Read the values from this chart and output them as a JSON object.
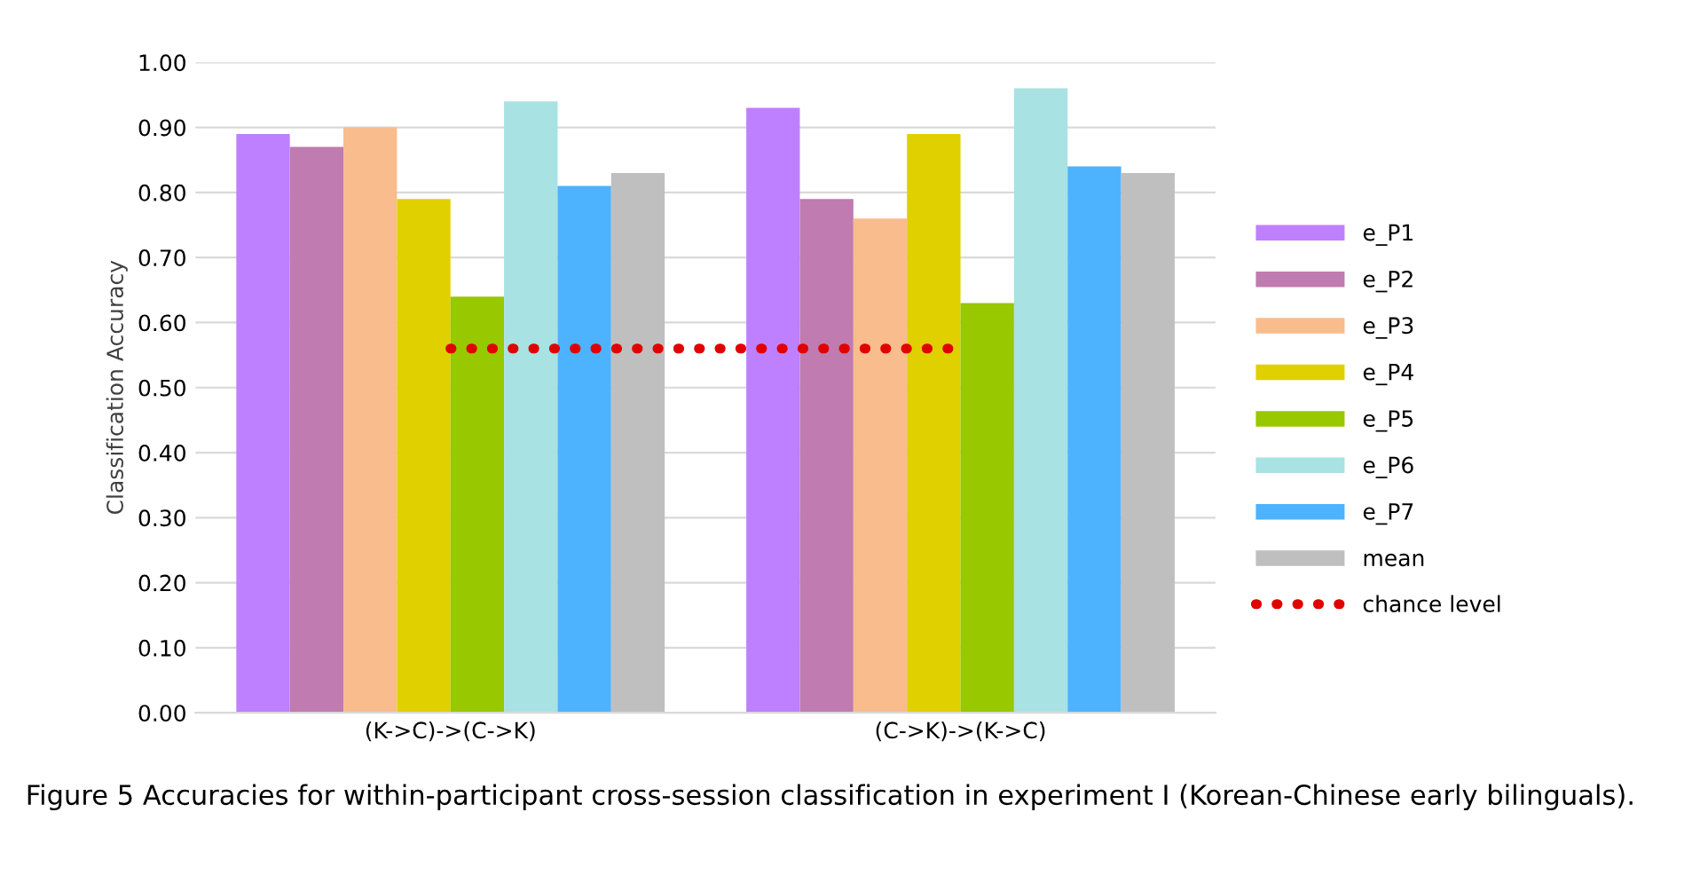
{
  "chart_data": {
    "type": "bar",
    "title": "Figure 5 Accuracies for within-participant cross-session classification in experiment I (Korean-Chinese early bilinguals).",
    "ylabel": "Classification Accuracy",
    "categories": [
      "(K->C)->(C->K)",
      "(C->K)->(K->C)"
    ],
    "series": [
      {
        "name": "e_P1",
        "color": "#bf80ff",
        "values": [
          0.89,
          0.93
        ]
      },
      {
        "name": "e_P2",
        "color": "#c07bb0",
        "values": [
          0.87,
          0.79
        ]
      },
      {
        "name": "e_P3",
        "color": "#f9bc8c",
        "values": [
          0.9,
          0.76
        ]
      },
      {
        "name": "e_P4",
        "color": "#e0d000",
        "values": [
          0.79,
          0.89
        ]
      },
      {
        "name": "e_P5",
        "color": "#97c800",
        "values": [
          0.64,
          0.63
        ]
      },
      {
        "name": "e_P6",
        "color": "#a8e2e2",
        "values": [
          0.94,
          0.96
        ]
      },
      {
        "name": "e_P7",
        "color": "#4db3ff",
        "values": [
          0.81,
          0.84
        ]
      },
      {
        "name": "mean",
        "color": "#bfbfbf",
        "values": [
          0.83,
          0.83
        ]
      },
      {
        "name": "chance level",
        "type": "line",
        "color": "#e00000",
        "values": [
          0.56,
          0.56
        ],
        "line_style": "dotted"
      }
    ],
    "ylim": [
      0,
      1
    ],
    "yticks": [
      {
        "value": 0,
        "label": "0.00"
      },
      {
        "value": 0.1,
        "label": "0.10"
      },
      {
        "value": 0.2,
        "label": "0.20"
      },
      {
        "value": 0.3,
        "label": "0.30"
      },
      {
        "value": 0.4,
        "label": "0.40"
      },
      {
        "value": 0.5,
        "label": "0.50"
      },
      {
        "value": 0.6,
        "label": "0.60"
      },
      {
        "value": 0.7,
        "label": "0.70"
      },
      {
        "value": 0.8,
        "label": "0.80"
      },
      {
        "value": 0.9,
        "label": "0.90"
      },
      {
        "value": 1,
        "label": "1.00"
      }
    ],
    "grid": "y",
    "legend": "right"
  }
}
